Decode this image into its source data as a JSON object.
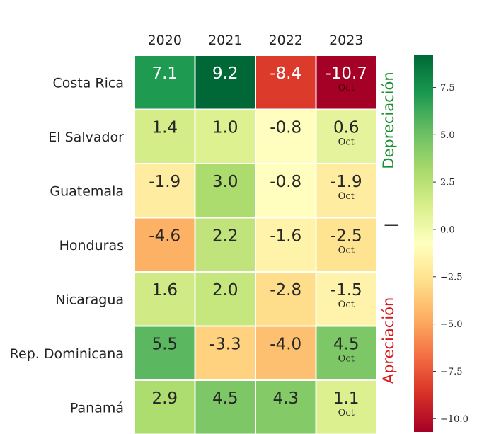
{
  "chart_data": {
    "type": "heatmap",
    "columns": [
      "2020",
      "2021",
      "2022",
      "2023"
    ],
    "rows": [
      "Costa Rica",
      "El Salvador",
      "Guatemala",
      "Honduras",
      "Nicaragua",
      "Rep. Dominicana",
      "Panamá"
    ],
    "values": [
      [
        7.1,
        9.2,
        -8.4,
        -10.7
      ],
      [
        1.4,
        1.0,
        -0.8,
        0.6
      ],
      [
        -1.9,
        3.0,
        -0.8,
        -1.9
      ],
      [
        -4.6,
        2.2,
        -1.6,
        -2.5
      ],
      [
        1.6,
        2.0,
        -2.8,
        -1.5
      ],
      [
        5.5,
        -3.3,
        -4.0,
        4.5
      ],
      [
        2.9,
        4.5,
        4.3,
        1.1
      ]
    ],
    "labels": [
      [
        "7.1",
        "9.2",
        "-8.4",
        "-10.7"
      ],
      [
        "1.4",
        "1.0",
        "-0.8",
        "0.6"
      ],
      [
        "-1.9",
        "3.0",
        "-0.8",
        "-1.9"
      ],
      [
        "-4.6",
        "2.2",
        "-1.6",
        "-2.5"
      ],
      [
        "1.6",
        "2.0",
        "-2.8",
        "-1.5"
      ],
      [
        "5.5",
        "-3.3",
        "-4.0",
        "4.5"
      ],
      [
        "2.9",
        "4.5",
        "4.3",
        "1.1"
      ]
    ],
    "column_note": "Oct",
    "note_column": 3,
    "colormap": "RdYlGn",
    "color_range": [
      -10.7,
      9.2
    ],
    "colorbar_ticks": [
      7.5,
      5.0,
      2.5,
      0.0,
      -2.5,
      -5.0,
      -7.5,
      -10.0
    ],
    "colorbar_tick_labels": [
      "7.5",
      "5.0",
      "2.5",
      "0.0",
      "−2.5",
      "−5.0",
      "−7.5",
      "−10.0"
    ],
    "annotations": {
      "top": "Depreciación",
      "middle": "—",
      "bottom": "Apreciación"
    },
    "colors": {
      "top_annotation": "#1a8f2e",
      "bottom_annotation": "#d7191c"
    }
  }
}
